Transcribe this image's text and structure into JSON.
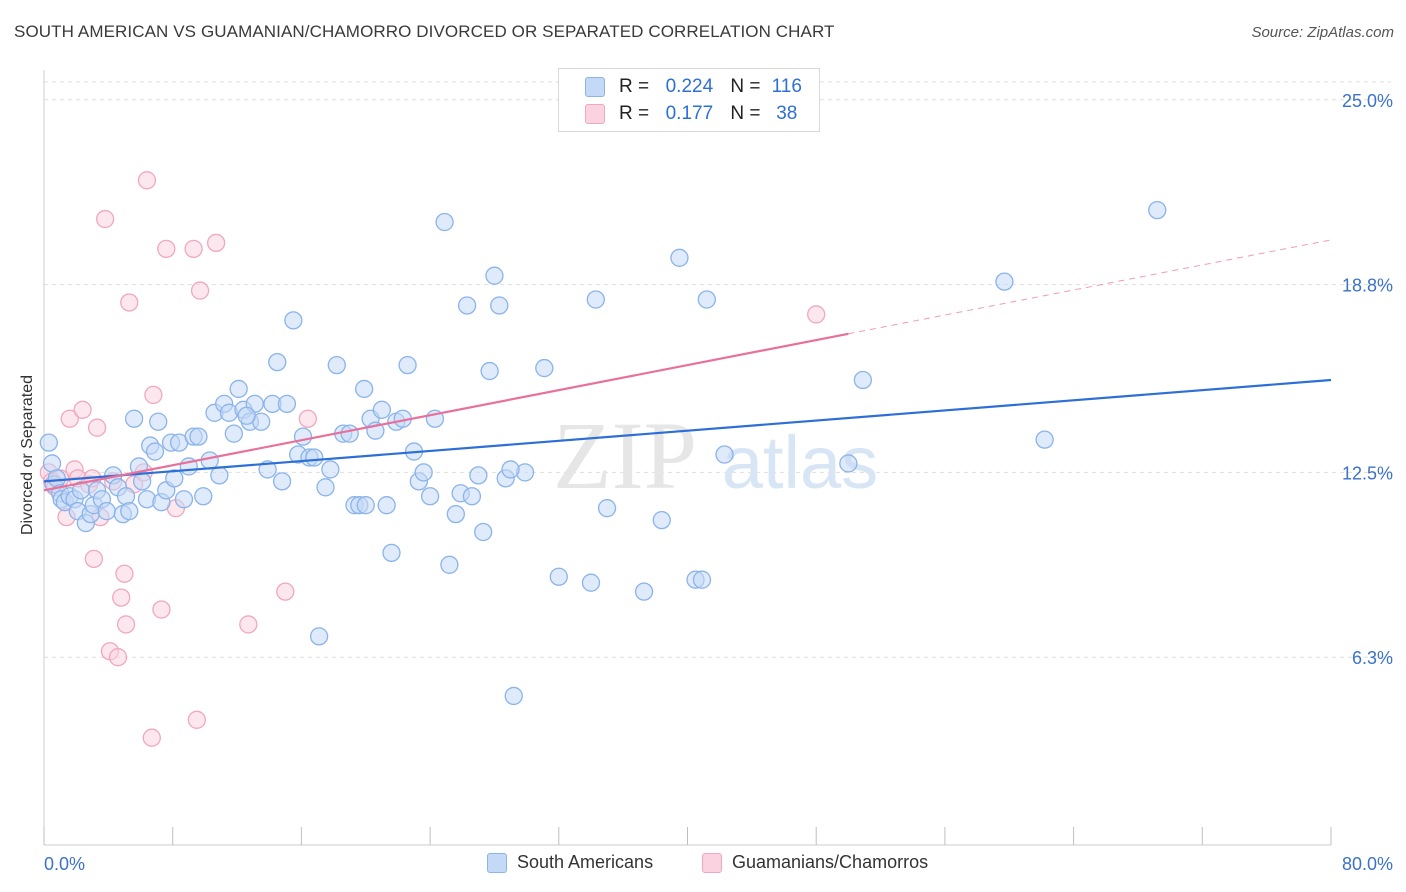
{
  "title": "SOUTH AMERICAN VS GUAMANIAN/CHAMORRO DIVORCED OR SEPARATED CORRELATION CHART",
  "source": "Source: ZipAtlas.com",
  "watermark": {
    "zip": "ZIP",
    "atlas": "atlas"
  },
  "legend": {
    "r_label": "R =",
    "n_label": "N =",
    "rows": [
      {
        "r": "0.224",
        "n": "116",
        "color": "#8ab4ea",
        "fill": "#c4d9f5"
      },
      {
        "r": "0.177",
        "n": "38",
        "color": "#f1a7bf",
        "fill": "#fbd3e0"
      }
    ]
  },
  "bottom_legend": [
    "South Americans",
    "Guamanians/Chamorros"
  ],
  "chart_data": {
    "type": "scatter",
    "title": "SOUTH AMERICAN VS GUAMANIAN/CHAMORRO DIVORCED OR SEPARATED CORRELATION CHART",
    "xlabel": "",
    "ylabel": "Divorced or Separated",
    "xlim": [
      0,
      80
    ],
    "ylim": [
      0,
      26
    ],
    "x_tick_labels": [
      "0.0%",
      "80.0%"
    ],
    "y_ticks": [
      6.3,
      12.5,
      18.8,
      25.0
    ],
    "y_tick_labels": [
      "6.3%",
      "12.5%",
      "18.8%",
      "25.0%"
    ],
    "grid": true,
    "legend_position": "top-center",
    "series": [
      {
        "name": "South Americans",
        "color": "#2d6fd6",
        "marker_fill": "#c4d9f5",
        "marker_stroke": "#8ab4ea",
        "trend": {
          "x": [
            0,
            80
          ],
          "y": [
            12.2,
            15.6
          ],
          "style": "solid"
        },
        "points": [
          [
            0.3,
            13.5
          ],
          [
            0.5,
            12.8
          ],
          [
            0.6,
            12.1
          ],
          [
            0.8,
            12.3
          ],
          [
            1.0,
            11.8
          ],
          [
            1.1,
            11.6
          ],
          [
            1.3,
            11.5
          ],
          [
            1.6,
            11.7
          ],
          [
            1.9,
            11.6
          ],
          [
            2.1,
            11.2
          ],
          [
            2.3,
            11.9
          ],
          [
            2.6,
            10.8
          ],
          [
            2.9,
            11.1
          ],
          [
            3.1,
            11.4
          ],
          [
            3.3,
            11.9
          ],
          [
            3.6,
            11.6
          ],
          [
            3.9,
            11.2
          ],
          [
            4.3,
            12.4
          ],
          [
            4.6,
            12.0
          ],
          [
            4.9,
            11.1
          ],
          [
            5.1,
            11.7
          ],
          [
            5.3,
            11.2
          ],
          [
            5.6,
            14.3
          ],
          [
            5.9,
            12.7
          ],
          [
            6.1,
            12.2
          ],
          [
            6.4,
            11.6
          ],
          [
            6.6,
            13.4
          ],
          [
            6.9,
            13.2
          ],
          [
            7.1,
            14.2
          ],
          [
            7.3,
            11.5
          ],
          [
            7.6,
            11.9
          ],
          [
            7.9,
            13.5
          ],
          [
            8.1,
            12.3
          ],
          [
            8.4,
            13.5
          ],
          [
            8.7,
            11.6
          ],
          [
            9.0,
            12.7
          ],
          [
            9.3,
            13.7
          ],
          [
            9.6,
            13.7
          ],
          [
            9.9,
            11.7
          ],
          [
            10.3,
            12.9
          ],
          [
            10.6,
            14.5
          ],
          [
            10.9,
            12.4
          ],
          [
            11.2,
            14.8
          ],
          [
            11.5,
            14.5
          ],
          [
            11.8,
            13.8
          ],
          [
            12.1,
            15.3
          ],
          [
            12.4,
            14.6
          ],
          [
            12.8,
            14.2
          ],
          [
            13.1,
            14.8
          ],
          [
            13.5,
            14.2
          ],
          [
            13.9,
            12.6
          ],
          [
            14.2,
            14.8
          ],
          [
            14.5,
            16.2
          ],
          [
            14.8,
            12.2
          ],
          [
            15.1,
            14.8
          ],
          [
            15.5,
            17.6
          ],
          [
            15.8,
            13.1
          ],
          [
            16.1,
            13.7
          ],
          [
            16.5,
            13.0
          ],
          [
            16.8,
            13.0
          ],
          [
            17.1,
            7.0
          ],
          [
            17.5,
            12.0
          ],
          [
            17.8,
            12.6
          ],
          [
            18.2,
            16.1
          ],
          [
            18.6,
            13.8
          ],
          [
            19.0,
            13.8
          ],
          [
            19.3,
            11.4
          ],
          [
            19.6,
            11.4
          ],
          [
            19.9,
            15.3
          ],
          [
            20.3,
            14.3
          ],
          [
            20.6,
            13.9
          ],
          [
            21.0,
            14.6
          ],
          [
            21.3,
            11.4
          ],
          [
            21.6,
            9.8
          ],
          [
            21.9,
            14.2
          ],
          [
            22.3,
            14.3
          ],
          [
            22.6,
            16.1
          ],
          [
            23.0,
            13.2
          ],
          [
            23.3,
            12.2
          ],
          [
            23.6,
            12.5
          ],
          [
            24.0,
            11.7
          ],
          [
            24.3,
            14.3
          ],
          [
            24.9,
            20.9
          ],
          [
            25.2,
            9.4
          ],
          [
            25.6,
            11.1
          ],
          [
            25.9,
            11.8
          ],
          [
            26.3,
            18.1
          ],
          [
            26.6,
            11.7
          ],
          [
            27.0,
            12.4
          ],
          [
            27.3,
            10.5
          ],
          [
            27.7,
            15.9
          ],
          [
            28.0,
            19.1
          ],
          [
            28.3,
            18.1
          ],
          [
            28.7,
            12.3
          ],
          [
            29.2,
            5.0
          ],
          [
            29.9,
            12.5
          ],
          [
            31.1,
            16.0
          ],
          [
            32.0,
            9.0
          ],
          [
            34.0,
            8.8
          ],
          [
            34.3,
            18.3
          ],
          [
            35.0,
            11.3
          ],
          [
            37.3,
            8.5
          ],
          [
            38.4,
            10.9
          ],
          [
            39.5,
            19.7
          ],
          [
            40.5,
            8.9
          ],
          [
            40.9,
            8.9
          ],
          [
            41.2,
            18.3
          ],
          [
            42.3,
            13.1
          ],
          [
            50.0,
            12.8
          ],
          [
            50.9,
            15.6
          ],
          [
            59.7,
            18.9
          ],
          [
            62.2,
            13.6
          ],
          [
            69.2,
            21.3
          ],
          [
            29.0,
            12.6
          ],
          [
            20.0,
            11.4
          ],
          [
            12.6,
            14.4
          ]
        ]
      },
      {
        "name": "Guamanians/Chamorros",
        "color": "#e8709a",
        "marker_fill": "#fbd3e0",
        "marker_stroke": "#f1a7bf",
        "trend": {
          "x": [
            0,
            80
          ],
          "y": [
            11.9,
            20.3
          ],
          "style": "solid-then-dashed",
          "solid_until": 50
        },
        "points": [
          [
            0.3,
            12.5
          ],
          [
            0.5,
            12.2
          ],
          [
            0.7,
            12.0
          ],
          [
            1.0,
            12.3
          ],
          [
            1.4,
            11.0
          ],
          [
            1.6,
            14.3
          ],
          [
            1.9,
            12.6
          ],
          [
            2.1,
            12.3
          ],
          [
            2.4,
            14.6
          ],
          [
            2.8,
            12.1
          ],
          [
            3.0,
            12.3
          ],
          [
            3.1,
            9.6
          ],
          [
            3.3,
            14.0
          ],
          [
            3.5,
            11.0
          ],
          [
            3.8,
            21.0
          ],
          [
            4.1,
            6.5
          ],
          [
            4.3,
            12.2
          ],
          [
            4.6,
            6.3
          ],
          [
            4.8,
            8.3
          ],
          [
            5.0,
            9.1
          ],
          [
            5.1,
            7.4
          ],
          [
            5.3,
            18.2
          ],
          [
            5.6,
            12.1
          ],
          [
            6.2,
            12.5
          ],
          [
            6.4,
            22.3
          ],
          [
            6.7,
            3.6
          ],
          [
            6.8,
            15.1
          ],
          [
            7.3,
            7.9
          ],
          [
            7.6,
            20.0
          ],
          [
            8.2,
            11.3
          ],
          [
            9.3,
            20.0
          ],
          [
            9.5,
            4.2
          ],
          [
            9.7,
            18.6
          ],
          [
            10.7,
            20.2
          ],
          [
            12.7,
            7.4
          ],
          [
            15.0,
            8.5
          ],
          [
            16.4,
            14.3
          ],
          [
            48.0,
            17.8
          ]
        ]
      }
    ]
  }
}
